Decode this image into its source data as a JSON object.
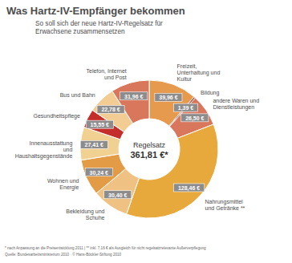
{
  "chart_data": {
    "type": "pie",
    "title": "Was Hartz-IV-Empfänger bekommen",
    "subtitle": "So soll sich der neue Hartz-IV-Regelsatz für Erwachsene zusammensetzen",
    "annotations": [
      "Regelsatz",
      "361,81 €*"
    ],
    "footnote": "* nach Anpassung an die Preisentwicklung 2011 | ** inkl. 7,16 € als Ausgleich für nicht regelsatzrelevante Außerverpflegung",
    "source": "Quelle: Bundesarbeitsministerium 2010 · © Hans-Böckler-Stiftung 2010",
    "categories": [
      "Freizeit, Unterhaltung und Kultur",
      "Bildung",
      "andere Waren und Dienstleistungen",
      "Nahrungsmittel und Getränke **",
      "Bekleidung und Schuhe",
      "Wohnen und Energie",
      "Innenausstattung und Haushaltsgegenstände",
      "Gesundheitspflege",
      "Bus und Bahn",
      "Telefon, Internet und Post"
    ],
    "values": [
      39.96,
      1.39,
      26.5,
      128.46,
      30.4,
      30.24,
      27.41,
      15.55,
      22.78,
      31.96
    ],
    "value_labels": [
      "39,96 €",
      "1,39 €",
      "26,50 €",
      "128,46 €",
      "30,40 €",
      "30,24 €",
      "27,41 €",
      "15,55 €",
      "22,78 €",
      "31,96 €"
    ],
    "colors": [
      "#e59a4e",
      "#b8322c",
      "#d8775c",
      "#e8a93c",
      "#efc283",
      "#e39c45",
      "#f1d191",
      "#c52f2b",
      "#f3cc93",
      "#d8775c"
    ],
    "data_labels": true
  }
}
